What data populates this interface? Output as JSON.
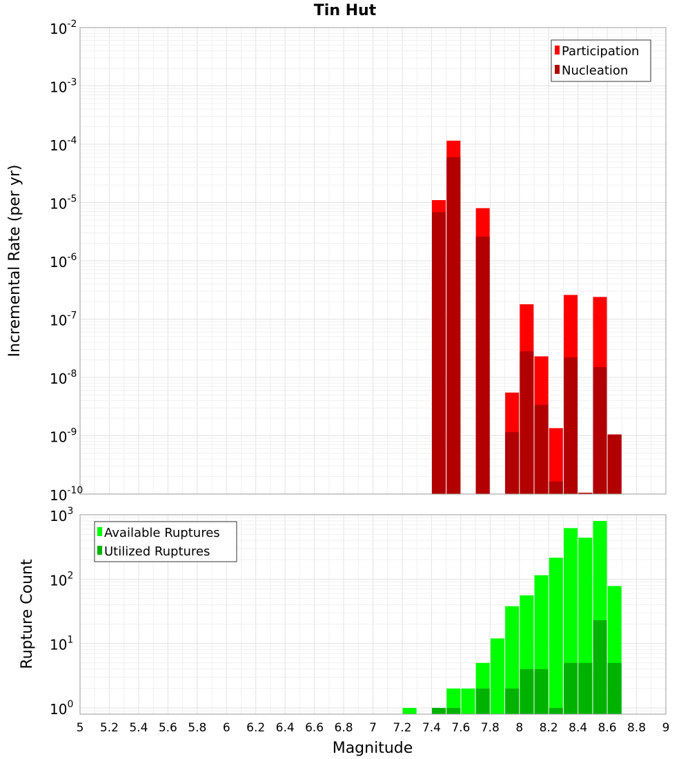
{
  "chart_data": [
    {
      "type": "bar",
      "title": "Tin Hut",
      "xlabel": "",
      "ylabel": "Incremental Rate (per yr)",
      "yscale": "log",
      "ylim": [
        1e-10,
        0.01
      ],
      "y_ticks": [
        {
          "base": "10",
          "exp": "-2",
          "value": 0.01
        },
        {
          "base": "10",
          "exp": "-3",
          "value": 0.001
        },
        {
          "base": "10",
          "exp": "-4",
          "value": 0.0001
        },
        {
          "base": "10",
          "exp": "-5",
          "value": 1e-05
        },
        {
          "base": "10",
          "exp": "-6",
          "value": 1e-06
        },
        {
          "base": "10",
          "exp": "-7",
          "value": 1e-07
        },
        {
          "base": "10",
          "exp": "-8",
          "value": 1e-08
        },
        {
          "base": "10",
          "exp": "-9",
          "value": 1e-09
        },
        {
          "base": "10",
          "exp": "-10",
          "value": 1e-10
        }
      ],
      "legend_position": "top-right",
      "x": [
        7.45,
        7.55,
        7.75,
        7.95,
        8.05,
        8.15,
        8.25,
        8.35,
        8.45,
        8.55,
        8.65
      ],
      "series": [
        {
          "name": "Participation",
          "color": "#ff0000",
          "values": [
            1.1e-05,
            0.000115,
            8e-06,
            5.5e-09,
            1.8e-07,
            2.3e-08,
            1.35e-09,
            2.6e-07,
            1.05e-10,
            2.4e-07,
            1.05e-09
          ]
        },
        {
          "name": "Nucleation",
          "color": "#b20000",
          "values": [
            6.8e-06,
            6e-05,
            2.6e-06,
            1.15e-09,
            2.8e-08,
            3.4e-09,
            1.65e-10,
            2.2e-08,
            1.05e-10,
            1.5e-08,
            1.05e-09
          ]
        }
      ]
    },
    {
      "type": "bar",
      "title": "",
      "xlabel": "Magnitude",
      "ylabel": "Rupture Count",
      "yscale": "log",
      "ylim": [
        0.8,
        1000
      ],
      "y_ticks": [
        {
          "base": "10",
          "exp": "3",
          "value": 1000
        },
        {
          "base": "10",
          "exp": "2",
          "value": 100
        },
        {
          "base": "10",
          "exp": "1",
          "value": 10
        },
        {
          "base": "10",
          "exp": "0",
          "value": 1
        }
      ],
      "xlim": [
        5,
        9
      ],
      "x_ticks": [
        "5",
        "5.2",
        "5.4",
        "5.6",
        "5.8",
        "6",
        "6.2",
        "6.4",
        "6.6",
        "6.8",
        "7",
        "7.2",
        "7.4",
        "7.6",
        "7.8",
        "8",
        "8.2",
        "8.4",
        "8.6",
        "8.8",
        "9"
      ],
      "legend_position": "top-left",
      "x": [
        7.25,
        7.45,
        7.55,
        7.65,
        7.75,
        7.85,
        7.95,
        8.05,
        8.15,
        8.25,
        8.35,
        8.45,
        8.55,
        8.65
      ],
      "series": [
        {
          "name": "Available Ruptures",
          "color": "#00ff00",
          "values": [
            1,
            1,
            2,
            2,
            5,
            12,
            38,
            56,
            115,
            215,
            620,
            440,
            800,
            78
          ]
        },
        {
          "name": "Utilized Ruptures",
          "color": "#00b200",
          "values": [
            0,
            1,
            1,
            0,
            2,
            0,
            2,
            4,
            4,
            1,
            5,
            5,
            23,
            5
          ]
        }
      ]
    }
  ]
}
